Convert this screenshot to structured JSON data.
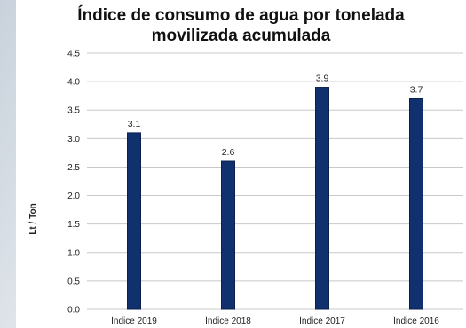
{
  "chart_data": {
    "type": "bar",
    "title_line1": "Índice de consumo de agua por tonelada",
    "title_line2": "movilizada acumulada",
    "xlabel": "",
    "ylabel": "Lt / Ton",
    "categories": [
      "Índice 2019",
      "Índice 2018",
      "Índice 2017",
      "Índice 2016"
    ],
    "values": [
      3.1,
      2.6,
      3.9,
      3.7
    ],
    "data_labels": [
      "3.1",
      "2.6",
      "3.9",
      "3.7"
    ],
    "ylim": [
      0,
      4.5
    ],
    "yticks": [
      "0.0",
      "0.5",
      "1.0",
      "1.5",
      "2.0",
      "2.5",
      "3.0",
      "3.5",
      "4.0",
      "4.5"
    ],
    "grid": true,
    "legend": "none",
    "bar_color": "#10306e",
    "bar_edge_color": "#0a1f4a",
    "grid_color": "#c8c8c8"
  }
}
